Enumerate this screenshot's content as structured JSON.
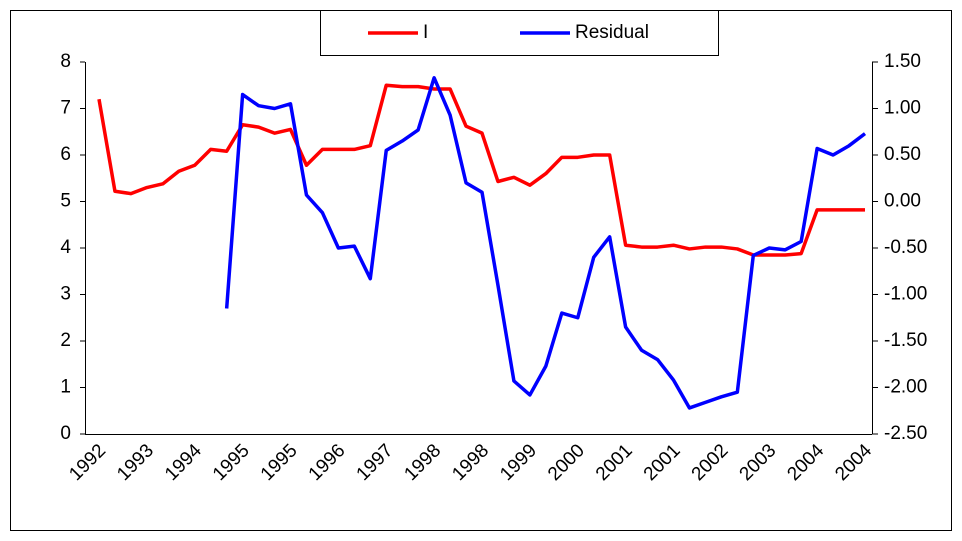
{
  "chart_data": {
    "type": "line",
    "categories": [
      "1992",
      null,
      null,
      "1993",
      null,
      null,
      "1994",
      null,
      null,
      "1995",
      null,
      null,
      "1995",
      null,
      null,
      "1996",
      null,
      null,
      "1997",
      null,
      null,
      "1998",
      null,
      null,
      "1998",
      null,
      null,
      "1999",
      null,
      null,
      "2000",
      null,
      null,
      "2001",
      null,
      null,
      "2001",
      null,
      null,
      "2002",
      null,
      null,
      "2003",
      null,
      null,
      "2004",
      null,
      null,
      "2004"
    ],
    "series": [
      {
        "name": "I",
        "color": "#ff0000",
        "values": [
          7.2,
          5.22,
          5.17,
          5.3,
          5.38,
          5.65,
          5.78,
          6.12,
          6.08,
          6.65,
          6.6,
          6.47,
          6.55,
          5.78,
          6.12,
          6.12,
          6.12,
          6.2,
          7.5,
          7.47,
          7.47,
          7.42,
          7.42,
          6.62,
          6.47,
          5.43,
          5.52,
          5.35,
          5.6,
          5.95,
          5.95,
          6.0,
          6.0,
          4.06,
          4.02,
          4.02,
          4.06,
          3.98,
          4.02,
          4.02,
          3.98,
          3.85,
          3.85,
          3.85,
          3.88,
          4.82,
          4.82,
          4.82,
          4.82
        ]
      },
      {
        "name": "Residual",
        "color": "#0000ff",
        "axis": "y2",
        "values": [
          null,
          null,
          null,
          null,
          null,
          null,
          null,
          null,
          -1.15,
          1.15,
          1.03,
          1.0,
          1.05,
          0.07,
          -0.12,
          -0.5,
          -0.48,
          -0.83,
          0.55,
          0.65,
          0.77,
          1.33,
          0.93,
          0.2,
          0.1,
          -0.9,
          -1.93,
          -2.08,
          -1.77,
          -1.2,
          -1.25,
          -0.6,
          -0.38,
          -1.35,
          -1.6,
          -1.7,
          -1.92,
          -2.22,
          -2.16,
          -2.1,
          -2.05,
          -0.58,
          -0.5,
          -0.52,
          -0.43,
          0.57,
          0.5,
          0.6,
          0.73
        ]
      }
    ],
    "ylim": [
      0,
      8
    ],
    "yticks": [
      0,
      1,
      2,
      3,
      4,
      5,
      6,
      7,
      8
    ],
    "y2lim": [
      -2.5,
      1.5
    ],
    "y2ticks": [
      {
        "value": -2.5,
        "label": "-2.50"
      },
      {
        "value": -2,
        "label": "-2.00"
      },
      {
        "value": -1.5,
        "label": "-1.50"
      },
      {
        "value": -1,
        "label": "-1.00"
      },
      {
        "value": -0.5,
        "label": "-0.50"
      },
      {
        "value": 0,
        "label": "0.00"
      },
      {
        "value": 0.5,
        "label": "0.50"
      },
      {
        "value": 1,
        "label": "1.00"
      },
      {
        "value": 1.5,
        "label": "1.50"
      }
    ],
    "legend": "top"
  }
}
